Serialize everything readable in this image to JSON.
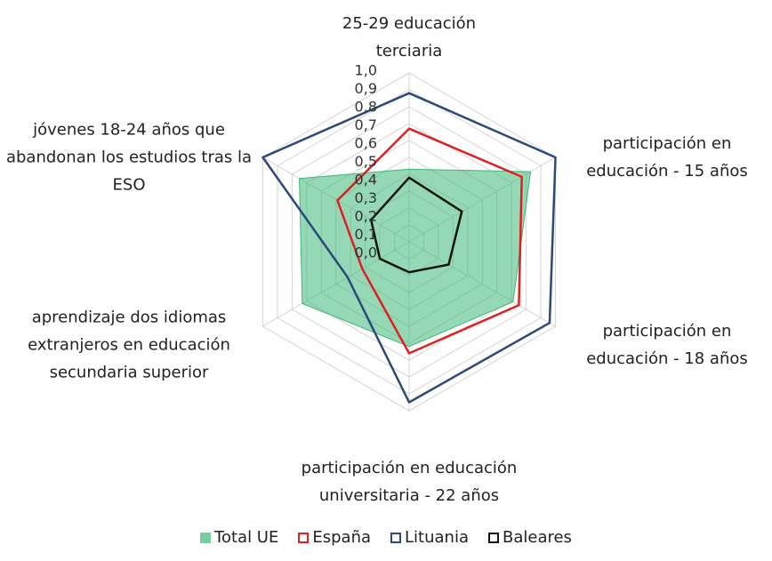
{
  "chart_data": {
    "type": "radar",
    "categories": [
      "25-29 educación terciaria",
      "participación en educación - 15 años",
      "participación en educación - 18 años",
      "participación en educación universitaria - 22 años",
      "aprendizaje dos idiomas extranjeros en educación secundaria superior",
      "jóvenes 18-24 años que abandonan los estudios tras la ESO"
    ],
    "series": [
      {
        "name": "Total UE",
        "color": "#3cb878",
        "values": [
          0.43,
          0.83,
          0.71,
          0.62,
          0.73,
          0.75
        ]
      },
      {
        "name": "España",
        "color": "#e02020",
        "values": [
          0.67,
          0.77,
          0.75,
          0.66,
          0.32,
          0.49
        ]
      },
      {
        "name": "Lituania",
        "color": "#2b4a7a",
        "values": [
          0.88,
          1.0,
          0.96,
          0.95,
          0.42,
          1.0
        ]
      },
      {
        "name": "Baleares",
        "color": "#111111",
        "values": [
          0.38,
          0.36,
          0.27,
          0.18,
          0.2,
          0.26
        ]
      }
    ],
    "ylim": [
      0,
      1
    ],
    "yticks": [
      {
        "value": 0,
        "label": "0,0"
      },
      {
        "value": 0.1,
        "label": "0,1"
      },
      {
        "value": 0.2,
        "label": "0,2"
      },
      {
        "value": 0.3,
        "label": "0,3"
      },
      {
        "value": 0.4,
        "label": "0,4"
      },
      {
        "value": 0.5,
        "label": "0,5"
      },
      {
        "value": 0.6,
        "label": "0,6"
      },
      {
        "value": 0.7,
        "label": "0,7"
      },
      {
        "value": 0.8,
        "label": "0,8"
      },
      {
        "value": 0.9,
        "label": "0,9"
      },
      {
        "value": 1,
        "label": "1,0"
      }
    ],
    "grid": true
  }
}
